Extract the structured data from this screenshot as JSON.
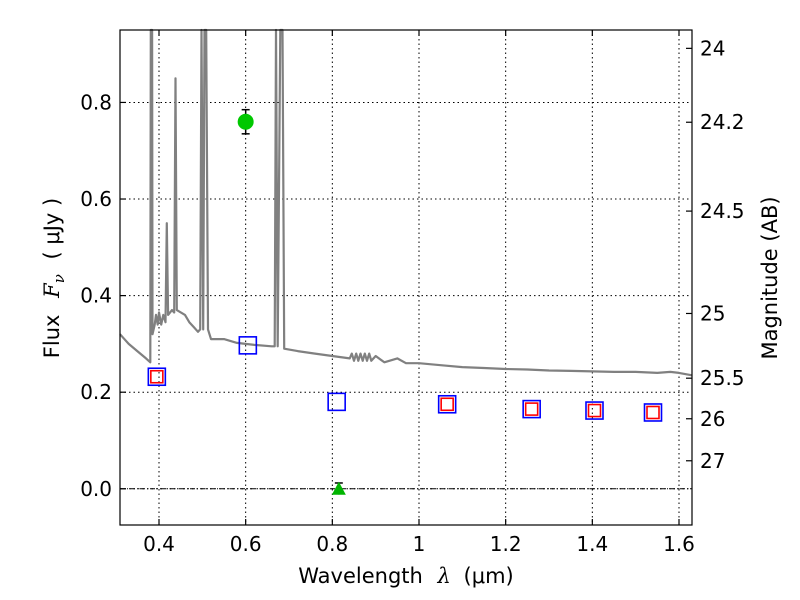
{
  "chart_data": {
    "type": "scatter",
    "title": "",
    "xlabel_parts": {
      "text": "Wavelength",
      "symbol": "λ",
      "unit": "(μm)"
    },
    "ylabel_parts": {
      "text": "Flux",
      "symbol": "F",
      "sub": "ν",
      "unit": "( μJy )"
    },
    "y2label": "Magnitude (AB)",
    "xlim": [
      0.31,
      1.63
    ],
    "ylim": [
      -0.075,
      0.95
    ],
    "grid": true,
    "x_ticks": [
      0.4,
      0.6,
      0.8,
      1.0,
      1.2,
      1.4,
      1.6
    ],
    "x_tick_labels": [
      "0.4",
      "0.6",
      "0.8",
      "1",
      "1.2",
      "1.4",
      "1.6"
    ],
    "y_ticks": [
      0.0,
      0.2,
      0.4,
      0.6,
      0.8
    ],
    "y_tick_labels": [
      "0.0",
      "0.2",
      "0.4",
      "0.6",
      "0.8"
    ],
    "y2_ticks": [
      {
        "flux": 0.912,
        "label": "24"
      },
      {
        "flux": 0.759,
        "label": "24.2"
      },
      {
        "flux": 0.575,
        "label": "24.5"
      },
      {
        "flux": 0.363,
        "label": "25"
      },
      {
        "flux": 0.229,
        "label": "25.5"
      },
      {
        "flux": 0.145,
        "label": "26"
      },
      {
        "flux": 0.058,
        "label": "27"
      }
    ],
    "series": [
      {
        "kind": "line",
        "color": "#808080",
        "points": [
          [
            0.31,
            0.32
          ],
          [
            0.33,
            0.3
          ],
          [
            0.35,
            0.285
          ],
          [
            0.37,
            0.27
          ],
          [
            0.38,
            0.262
          ],
          [
            0.381,
            0.95
          ],
          [
            0.384,
            0.95
          ],
          [
            0.385,
            0.32
          ],
          [
            0.39,
            0.34
          ],
          [
            0.393,
            0.36
          ],
          [
            0.397,
            0.34
          ],
          [
            0.4,
            0.365
          ],
          [
            0.405,
            0.34
          ],
          [
            0.41,
            0.36
          ],
          [
            0.415,
            0.345
          ],
          [
            0.418,
            0.55
          ],
          [
            0.421,
            0.36
          ],
          [
            0.43,
            0.37
          ],
          [
            0.435,
            0.365
          ],
          [
            0.438,
            0.85
          ],
          [
            0.441,
            0.37
          ],
          [
            0.46,
            0.36
          ],
          [
            0.47,
            0.345
          ],
          [
            0.48,
            0.335
          ],
          [
            0.49,
            0.325
          ],
          [
            0.495,
            0.33
          ],
          [
            0.498,
            0.95
          ],
          [
            0.502,
            0.33
          ],
          [
            0.505,
            0.95
          ],
          [
            0.509,
            0.95
          ],
          [
            0.513,
            0.33
          ],
          [
            0.52,
            0.31
          ],
          [
            0.55,
            0.31
          ],
          [
            0.58,
            0.302
          ],
          [
            0.62,
            0.298
          ],
          [
            0.66,
            0.295
          ],
          [
            0.667,
            0.295
          ],
          [
            0.67,
            0.95
          ],
          [
            0.674,
            0.295
          ],
          [
            0.68,
            0.95
          ],
          [
            0.685,
            0.95
          ],
          [
            0.689,
            0.29
          ],
          [
            0.72,
            0.285
          ],
          [
            0.76,
            0.28
          ],
          [
            0.8,
            0.275
          ],
          [
            0.84,
            0.27
          ],
          [
            0.845,
            0.28
          ],
          [
            0.85,
            0.265
          ],
          [
            0.855,
            0.28
          ],
          [
            0.86,
            0.265
          ],
          [
            0.865,
            0.28
          ],
          [
            0.87,
            0.265
          ],
          [
            0.875,
            0.28
          ],
          [
            0.88,
            0.265
          ],
          [
            0.885,
            0.28
          ],
          [
            0.89,
            0.265
          ],
          [
            0.9,
            0.275
          ],
          [
            0.92,
            0.262
          ],
          [
            0.95,
            0.27
          ],
          [
            0.97,
            0.26
          ],
          [
            1.0,
            0.26
          ],
          [
            1.05,
            0.256
          ],
          [
            1.1,
            0.252
          ],
          [
            1.15,
            0.25
          ],
          [
            1.2,
            0.248
          ],
          [
            1.25,
            0.247
          ],
          [
            1.3,
            0.245
          ],
          [
            1.35,
            0.244
          ],
          [
            1.4,
            0.243
          ],
          [
            1.45,
            0.242
          ],
          [
            1.5,
            0.242
          ],
          [
            1.55,
            0.24
          ],
          [
            1.58,
            0.242
          ],
          [
            1.6,
            0.24
          ],
          [
            1.63,
            0.235
          ]
        ]
      },
      {
        "kind": "square",
        "color": "#0000ff",
        "size": 17,
        "points": [
          [
            0.395,
            0.232
          ],
          [
            0.605,
            0.297
          ],
          [
            0.81,
            0.18
          ],
          [
            1.065,
            0.175
          ],
          [
            1.26,
            0.165
          ],
          [
            1.405,
            0.162
          ],
          [
            1.54,
            0.158
          ]
        ]
      },
      {
        "kind": "square",
        "color": "#ff0000",
        "size": 12,
        "points": [
          [
            0.395,
            0.232
          ],
          [
            1.065,
            0.175
          ],
          [
            1.26,
            0.165
          ],
          [
            1.405,
            0.162
          ],
          [
            1.54,
            0.158
          ]
        ]
      },
      {
        "kind": "circle",
        "color": "#00c800",
        "points": [
          [
            0.6,
            0.76
          ]
        ],
        "yerr": [
          0.025
        ]
      },
      {
        "kind": "triangle",
        "color": "#00b400",
        "points": [
          [
            0.815,
            0.0
          ]
        ],
        "yerr": [
          0.012
        ]
      }
    ]
  }
}
